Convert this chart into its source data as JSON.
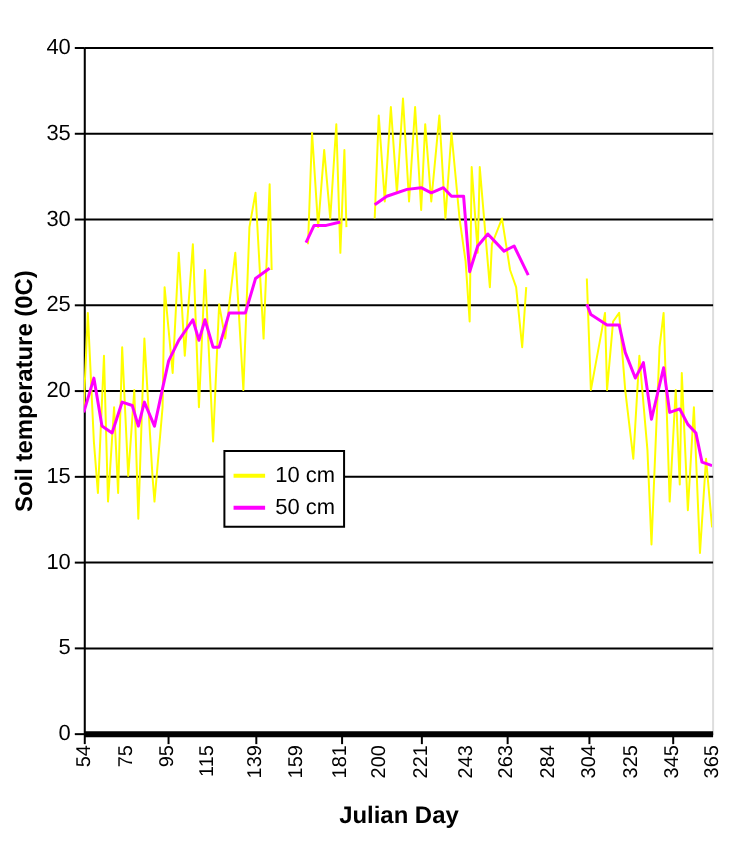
{
  "chart_data": {
    "type": "line",
    "xlabel": "Julian Day",
    "ylabel": "Soil temperature (0C)",
    "xlim": [
      54,
      365
    ],
    "xticks": [
      54,
      75,
      95,
      115,
      139,
      159,
      181,
      200,
      221,
      243,
      263,
      284,
      304,
      325,
      345,
      365
    ],
    "ylim": [
      0,
      40
    ],
    "yticks": [
      0,
      5,
      10,
      15,
      20,
      25,
      30,
      35,
      40
    ],
    "grid": "y",
    "legend": "left",
    "marker": "none",
    "line_style": "solid",
    "series": [
      {
        "name": "10 cm",
        "color": "#ffff00",
        "x": [
          54,
          56,
          59,
          61,
          64,
          66,
          69,
          71,
          73,
          76,
          79,
          81,
          84,
          88,
          89,
          93,
          94,
          98,
          101,
          104,
          108,
          111,
          114,
          118,
          121,
          124,
          129,
          133,
          136,
          139,
          143,
          146,
          147,
          155,
          165,
          167,
          170,
          173,
          176,
          179,
          181,
          183,
          184,
          192,
          198,
          200,
          203,
          206,
          209,
          212,
          215,
          218,
          221,
          223,
          226,
          230,
          233,
          236,
          240,
          243,
          245,
          246,
          249,
          250,
          255,
          256,
          261,
          265,
          268,
          271,
          273,
          290,
          303,
          305,
          312,
          313,
          316,
          319,
          322,
          326,
          329,
          333,
          335,
          339,
          341,
          344,
          347,
          349,
          350,
          353,
          356,
          359,
          362,
          365
        ],
        "values": [
          19,
          24.5,
          17,
          14,
          22,
          13.5,
          19,
          14,
          22.5,
          15,
          20,
          12.5,
          23,
          15,
          13.5,
          19,
          26,
          21,
          28,
          22,
          28.5,
          19,
          27,
          17,
          25,
          23,
          28,
          20,
          29.5,
          31.5,
          23,
          32,
          27,
          null,
          28.5,
          35,
          29.5,
          34,
          30,
          35.5,
          28,
          34,
          29.5,
          null,
          30,
          36,
          31,
          36.5,
          31.5,
          37,
          31,
          36.5,
          30.5,
          35.5,
          31,
          36,
          30,
          35,
          30,
          27.5,
          24,
          33,
          28,
          33,
          26,
          28.5,
          30,
          27,
          26,
          22.5,
          26,
          null,
          26.5,
          20,
          24.5,
          20,
          24,
          24.5,
          20,
          16,
          22,
          16.5,
          11,
          22.5,
          24.5,
          13.5,
          20,
          14.5,
          21,
          13,
          19,
          10.5,
          16,
          12
        ]
      },
      {
        "name": "50 cm",
        "color": "#ff00ff",
        "x": [
          54,
          59,
          63,
          68,
          73,
          78,
          81,
          84,
          89,
          93,
          96,
          101,
          108,
          111,
          114,
          118,
          121,
          126,
          134,
          139,
          146,
          155,
          164,
          168,
          174,
          181,
          190,
          198,
          204,
          214,
          221,
          226,
          232,
          236,
          242,
          245,
          249,
          254,
          262,
          267,
          274,
          290,
          303,
          305,
          313,
          319,
          322,
          327,
          331,
          335,
          341,
          344,
          349,
          353,
          357,
          360,
          365
        ],
        "values": [
          18.7,
          20.7,
          17.9,
          17.5,
          19.3,
          19.1,
          17.9,
          19.3,
          17.9,
          20.1,
          21.7,
          22.9,
          24.1,
          22.9,
          24.1,
          22.5,
          22.5,
          24.5,
          24.5,
          26.5,
          27.1,
          null,
          28.6,
          29.6,
          29.6,
          29.8,
          null,
          30.8,
          31.3,
          31.7,
          31.8,
          31.5,
          31.8,
          31.3,
          31.3,
          26.9,
          28.4,
          29.1,
          28.1,
          28.4,
          26.7,
          null,
          25,
          24.4,
          23.8,
          23.8,
          22.2,
          20.7,
          21.6,
          18.3,
          21.3,
          18.7,
          18.9,
          18,
          17.5,
          15.8,
          15.6
        ]
      }
    ]
  }
}
